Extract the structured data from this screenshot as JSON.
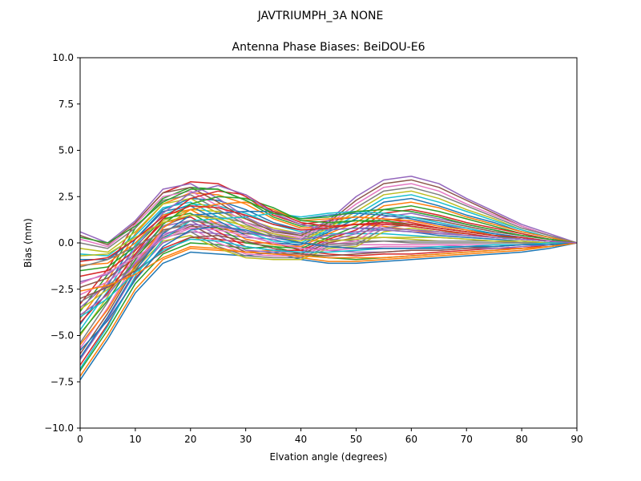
{
  "suptitle": "JAVTRIUMPH_3A   NONE",
  "chart_data": {
    "type": "line",
    "title": "Antenna Phase Biases: BeiDOU-E6",
    "xlabel": "Elvation angle (degrees)",
    "ylabel": "Bias (mm)",
    "xlim": [
      0,
      90
    ],
    "ylim": [
      -10,
      10
    ],
    "xticks": [
      0,
      10,
      20,
      30,
      40,
      50,
      60,
      70,
      80,
      90
    ],
    "yticks": [
      -10.0,
      -7.5,
      -5.0,
      -2.5,
      0.0,
      2.5,
      5.0,
      7.5,
      10.0
    ],
    "xtick_labels": [
      "0",
      "10",
      "20",
      "30",
      "40",
      "50",
      "60",
      "70",
      "80",
      "90"
    ],
    "ytick_labels": [
      "−10.0",
      "−7.5",
      "−5.0",
      "−2.5",
      "0.0",
      "2.5",
      "5.0",
      "7.5",
      "10.0"
    ],
    "grid": false,
    "x": [
      0,
      5,
      10,
      15,
      20,
      25,
      30,
      35,
      40,
      45,
      50,
      55,
      60,
      65,
      70,
      75,
      80,
      85,
      90
    ],
    "colors": [
      "#1f77b4",
      "#ff7f0e",
      "#2ca02c",
      "#d62728",
      "#9467bd",
      "#8c564b",
      "#e377c2",
      "#7f7f7f",
      "#bcbd22",
      "#17becf"
    ],
    "series": [
      {
        "values": [
          -7.4,
          -5.2,
          -2.7,
          -1.1,
          -0.5,
          -0.6,
          -0.7,
          -0.5,
          -0.9,
          -1.1,
          -1.1,
          -1.0,
          -0.9,
          -0.8,
          -0.7,
          -0.6,
          -0.5,
          -0.3,
          0.0
        ]
      },
      {
        "values": [
          -7.2,
          -5.0,
          -2.5,
          -0.9,
          -0.3,
          -0.4,
          -0.5,
          -0.4,
          -0.8,
          -1.0,
          -1.0,
          -0.9,
          -0.8,
          -0.7,
          -0.6,
          -0.5,
          -0.4,
          -0.2,
          0.0
        ]
      },
      {
        "values": [
          -6.9,
          -4.7,
          -2.2,
          -0.6,
          0.0,
          -0.1,
          -0.3,
          -0.2,
          -0.6,
          -0.8,
          -0.9,
          -0.8,
          -0.7,
          -0.6,
          -0.5,
          -0.4,
          -0.3,
          -0.2,
          0.0
        ]
      },
      {
        "values": [
          -6.6,
          -4.4,
          -1.9,
          -0.3,
          0.3,
          0.2,
          0.0,
          0.0,
          -0.4,
          -0.6,
          -0.7,
          -0.6,
          -0.6,
          -0.5,
          -0.4,
          -0.3,
          -0.3,
          -0.1,
          0.0
        ]
      },
      {
        "values": [
          -6.3,
          -4.1,
          -1.6,
          0.0,
          0.6,
          0.5,
          0.3,
          0.2,
          -0.2,
          -0.4,
          -0.5,
          -0.5,
          -0.4,
          -0.4,
          -0.3,
          -0.3,
          -0.2,
          -0.1,
          0.0
        ]
      },
      {
        "values": [
          -6.0,
          -3.8,
          -1.3,
          0.3,
          0.9,
          0.8,
          0.5,
          0.4,
          0.0,
          -0.2,
          -0.3,
          -0.3,
          -0.3,
          -0.3,
          -0.2,
          -0.2,
          -0.1,
          -0.1,
          0.0
        ]
      },
      {
        "values": [
          -5.7,
          -3.5,
          -1.0,
          0.6,
          1.2,
          1.1,
          0.8,
          0.5,
          0.2,
          0.0,
          -0.1,
          -0.1,
          -0.1,
          -0.1,
          -0.1,
          -0.1,
          -0.1,
          0.0,
          0.0
        ]
      },
      {
        "values": [
          -5.4,
          -3.2,
          -0.7,
          0.9,
          1.5,
          1.4,
          1.1,
          0.7,
          0.4,
          0.2,
          0.1,
          0.1,
          0.0,
          0.0,
          0.0,
          0.0,
          0.0,
          0.0,
          0.0
        ]
      },
      {
        "values": [
          -5.0,
          -2.9,
          -0.4,
          1.2,
          1.8,
          1.7,
          1.3,
          0.8,
          0.5,
          0.4,
          0.3,
          0.3,
          0.2,
          0.1,
          0.1,
          0.1,
          0.0,
          0.0,
          0.0
        ]
      },
      {
        "values": [
          -4.7,
          -2.6,
          -0.1,
          1.5,
          2.1,
          2.0,
          1.6,
          1.0,
          0.6,
          0.5,
          0.5,
          0.5,
          0.4,
          0.3,
          0.2,
          0.1,
          0.1,
          0.0,
          0.0
        ]
      },
      {
        "values": [
          -4.4,
          -2.3,
          0.2,
          1.8,
          2.4,
          2.3,
          1.8,
          1.1,
          0.7,
          0.7,
          0.8,
          0.7,
          0.6,
          0.4,
          0.3,
          0.2,
          0.1,
          0.0,
          0.0
        ]
      },
      {
        "values": [
          -4.1,
          -2.0,
          0.5,
          2.1,
          2.7,
          2.6,
          2.1,
          1.3,
          0.8,
          0.9,
          1.0,
          0.9,
          0.7,
          0.5,
          0.4,
          0.3,
          0.2,
          0.1,
          0.0
        ]
      },
      {
        "values": [
          -3.7,
          -1.7,
          0.8,
          2.4,
          3.0,
          2.9,
          2.3,
          1.4,
          0.9,
          1.0,
          1.2,
          1.1,
          0.9,
          0.7,
          0.5,
          0.3,
          0.2,
          0.1,
          0.0
        ]
      },
      {
        "values": [
          -3.3,
          -1.4,
          1.1,
          2.7,
          3.3,
          3.2,
          2.5,
          1.5,
          1.0,
          1.2,
          1.4,
          1.3,
          1.1,
          0.8,
          0.6,
          0.4,
          0.2,
          0.1,
          0.0
        ]
      },
      {
        "values": [
          0.6,
          0.0,
          1.2,
          2.9,
          3.2,
          2.4,
          1.4,
          0.7,
          0.5,
          1.2,
          2.5,
          3.4,
          3.6,
          3.2,
          2.4,
          1.7,
          1.0,
          0.5,
          0.0
        ]
      },
      {
        "values": [
          0.4,
          -0.1,
          1.1,
          2.7,
          3.0,
          2.2,
          1.3,
          0.6,
          0.4,
          1.1,
          2.3,
          3.2,
          3.4,
          3.0,
          2.3,
          1.6,
          0.9,
          0.4,
          0.0
        ]
      },
      {
        "values": [
          0.2,
          -0.2,
          1.0,
          2.5,
          2.8,
          2.0,
          1.1,
          0.5,
          0.3,
          1.0,
          2.1,
          3.0,
          3.2,
          2.8,
          2.1,
          1.5,
          0.9,
          0.4,
          0.0
        ]
      },
      {
        "values": [
          0.0,
          -0.3,
          0.8,
          2.3,
          2.6,
          1.8,
          1.0,
          0.4,
          0.2,
          0.9,
          1.9,
          2.8,
          3.0,
          2.6,
          2.0,
          1.4,
          0.8,
          0.4,
          0.0
        ]
      },
      {
        "values": [
          -0.3,
          -0.5,
          0.6,
          2.1,
          2.4,
          1.6,
          0.8,
          0.3,
          0.1,
          0.8,
          1.7,
          2.6,
          2.8,
          2.4,
          1.8,
          1.3,
          0.7,
          0.3,
          0.0
        ]
      },
      {
        "values": [
          -0.6,
          -0.7,
          0.4,
          1.9,
          2.2,
          1.4,
          0.6,
          0.1,
          0.0,
          0.7,
          1.5,
          2.4,
          2.6,
          2.2,
          1.7,
          1.2,
          0.7,
          0.3,
          0.0
        ]
      },
      {
        "values": [
          -0.9,
          -0.9,
          0.2,
          1.7,
          2.0,
          1.2,
          0.4,
          0.0,
          -0.1,
          0.6,
          1.3,
          2.2,
          2.4,
          2.0,
          1.5,
          1.1,
          0.6,
          0.3,
          0.0
        ]
      },
      {
        "values": [
          -1.2,
          -1.1,
          0.0,
          1.5,
          1.8,
          1.0,
          0.2,
          -0.1,
          -0.2,
          0.5,
          1.1,
          2.0,
          2.2,
          1.9,
          1.4,
          1.0,
          0.6,
          0.3,
          0.0
        ]
      },
      {
        "values": [
          -1.5,
          -1.3,
          -0.2,
          1.3,
          1.6,
          0.8,
          0.0,
          -0.2,
          -0.3,
          0.3,
          0.9,
          1.8,
          2.0,
          1.7,
          1.3,
          0.9,
          0.5,
          0.2,
          0.0
        ]
      },
      {
        "values": [
          -1.8,
          -1.5,
          -0.4,
          1.1,
          1.4,
          0.6,
          -0.2,
          -0.4,
          -0.4,
          0.2,
          0.7,
          1.6,
          1.8,
          1.5,
          1.1,
          0.8,
          0.5,
          0.2,
          0.0
        ]
      },
      {
        "values": [
          -2.1,
          -1.7,
          -0.6,
          0.9,
          1.2,
          0.4,
          -0.4,
          -0.5,
          -0.5,
          0.1,
          0.5,
          1.4,
          1.6,
          1.3,
          1.0,
          0.7,
          0.4,
          0.2,
          0.0
        ]
      },
      {
        "values": [
          -2.4,
          -1.9,
          -0.8,
          0.7,
          1.0,
          0.2,
          -0.5,
          -0.6,
          -0.6,
          0.0,
          0.3,
          1.2,
          1.4,
          1.2,
          0.9,
          0.6,
          0.4,
          0.2,
          0.0
        ]
      },
      {
        "values": [
          -2.8,
          -2.1,
          -1.0,
          0.5,
          0.8,
          0.0,
          -0.6,
          -0.7,
          -0.7,
          -0.1,
          0.1,
          1.0,
          1.2,
          1.0,
          0.8,
          0.5,
          0.3,
          0.1,
          0.0
        ]
      },
      {
        "values": [
          -3.2,
          -2.3,
          -1.2,
          0.3,
          0.6,
          -0.2,
          -0.7,
          -0.8,
          -0.8,
          -0.2,
          -0.1,
          0.8,
          1.0,
          0.8,
          0.6,
          0.4,
          0.3,
          0.1,
          0.0
        ]
      },
      {
        "values": [
          -3.6,
          -2.5,
          -1.4,
          0.1,
          0.4,
          -0.3,
          -0.8,
          -0.9,
          -0.9,
          -0.3,
          -0.2,
          0.6,
          0.8,
          0.6,
          0.5,
          0.3,
          0.2,
          0.1,
          0.0
        ]
      },
      {
        "values": [
          -6.8,
          -4.5,
          -1.8,
          0.2,
          1.2,
          1.3,
          1.4,
          1.6,
          1.4,
          1.6,
          1.7,
          1.6,
          1.4,
          1.1,
          0.8,
          0.5,
          0.3,
          0.1,
          0.0
        ]
      },
      {
        "values": [
          -6.2,
          -4.0,
          -1.5,
          0.5,
          1.5,
          1.6,
          1.7,
          1.7,
          1.3,
          1.5,
          1.6,
          1.5,
          1.3,
          1.0,
          0.7,
          0.5,
          0.3,
          0.1,
          0.0
        ]
      },
      {
        "values": [
          -5.5,
          -3.6,
          -1.2,
          0.8,
          1.8,
          2.1,
          2.2,
          1.8,
          1.2,
          1.3,
          1.4,
          1.3,
          1.2,
          0.9,
          0.7,
          0.4,
          0.2,
          0.1,
          0.0
        ]
      },
      {
        "values": [
          -4.9,
          -3.1,
          -0.9,
          1.0,
          2.1,
          2.5,
          2.4,
          1.9,
          1.2,
          1.1,
          1.2,
          1.2,
          1.0,
          0.8,
          0.6,
          0.4,
          0.2,
          0.1,
          0.0
        ]
      },
      {
        "values": [
          -4.3,
          -2.7,
          -0.6,
          1.3,
          2.4,
          2.8,
          2.6,
          1.7,
          1.1,
          0.9,
          1.0,
          1.0,
          0.9,
          0.7,
          0.5,
          0.3,
          0.2,
          0.1,
          0.0
        ]
      },
      {
        "values": [
          -3.5,
          -2.2,
          -0.3,
          1.6,
          2.7,
          3.1,
          2.6,
          1.6,
          1.0,
          0.7,
          0.8,
          0.8,
          0.7,
          0.6,
          0.4,
          0.3,
          0.2,
          0.1,
          0.0
        ]
      },
      {
        "values": [
          -3.0,
          -2.4,
          -1.5,
          -0.5,
          0.3,
          0.4,
          0.1,
          -0.3,
          -0.6,
          -0.7,
          -0.6,
          -0.5,
          -0.4,
          -0.4,
          -0.3,
          -0.2,
          -0.1,
          -0.1,
          0.0
        ]
      },
      {
        "values": [
          -2.2,
          -1.6,
          -0.8,
          0.2,
          0.8,
          0.7,
          0.4,
          0.0,
          -0.3,
          -0.4,
          -0.3,
          -0.2,
          -0.2,
          -0.2,
          -0.1,
          -0.1,
          -0.1,
          0.0,
          0.0
        ]
      },
      {
        "values": [
          -1.3,
          -0.9,
          -0.2,
          0.6,
          1.2,
          1.0,
          0.6,
          0.3,
          0.0,
          -0.1,
          0.0,
          0.1,
          0.1,
          0.1,
          0.1,
          0.1,
          0.0,
          0.0,
          0.0
        ]
      },
      {
        "values": [
          -0.7,
          -0.6,
          0.3,
          1.1,
          1.5,
          1.3,
          0.9,
          0.5,
          0.2,
          0.1,
          0.2,
          0.3,
          0.3,
          0.3,
          0.2,
          0.1,
          0.1,
          0.0,
          0.0
        ]
      },
      {
        "values": [
          -4.0,
          -3.0,
          -1.6,
          -0.4,
          0.2,
          0.1,
          -0.2,
          -0.4,
          -0.5,
          -0.5,
          -0.4,
          -0.3,
          -0.3,
          -0.2,
          -0.2,
          -0.1,
          -0.1,
          0.0,
          0.0
        ]
      },
      {
        "values": [
          -5.8,
          -4.2,
          -2.0,
          -0.2,
          0.7,
          0.9,
          0.7,
          0.3,
          0.0,
          -0.2,
          -0.3,
          -0.3,
          -0.3,
          -0.3,
          -0.2,
          -0.2,
          -0.1,
          -0.1,
          0.0
        ]
      },
      {
        "values": [
          -2.6,
          -2.3,
          -1.7,
          -0.8,
          -0.2,
          -0.3,
          -0.5,
          -0.6,
          -0.7,
          -0.8,
          -0.8,
          -0.8,
          -0.7,
          -0.6,
          -0.5,
          -0.4,
          -0.3,
          -0.2,
          0.0
        ]
      },
      {
        "values": [
          0.3,
          0.0,
          0.9,
          2.2,
          2.9,
          2.9,
          2.3,
          1.6,
          1.3,
          1.4,
          1.7,
          1.8,
          1.7,
          1.4,
          1.0,
          0.7,
          0.4,
          0.2,
          0.0
        ]
      },
      {
        "values": [
          -1.0,
          -0.8,
          0.2,
          1.4,
          2.0,
          1.9,
          1.5,
          1.0,
          0.7,
          0.8,
          1.0,
          1.1,
          1.0,
          0.8,
          0.6,
          0.4,
          0.3,
          0.1,
          0.0
        ]
      },
      {
        "values": [
          -3.9,
          -2.8,
          -1.1,
          0.4,
          1.0,
          0.9,
          0.6,
          0.3,
          0.2,
          0.4,
          0.6,
          0.7,
          0.6,
          0.5,
          0.4,
          0.3,
          0.2,
          0.1,
          0.0
        ]
      }
    ]
  }
}
